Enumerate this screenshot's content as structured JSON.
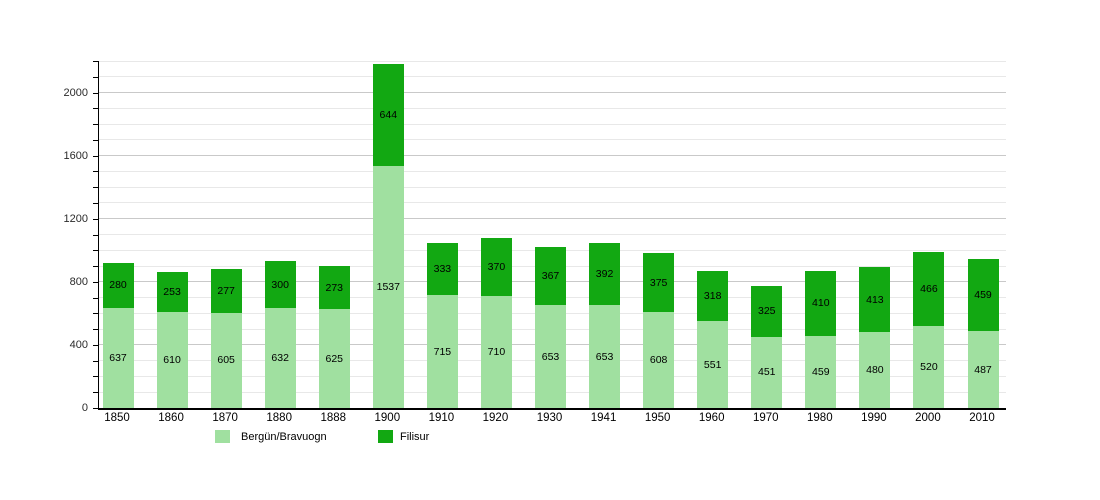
{
  "chart_data": {
    "type": "bar",
    "stacked": true,
    "title": "",
    "xlabel": "",
    "ylabel": "",
    "categories": [
      "1850",
      "1860",
      "1870",
      "1880",
      "1888",
      "1900",
      "1910",
      "1920",
      "1930",
      "1941",
      "1950",
      "1960",
      "1970",
      "1980",
      "1990",
      "2000",
      "2010"
    ],
    "series": [
      {
        "name": "Bergün/Bravuogn",
        "color": "#a0e0a0",
        "values": [
          637,
          610,
          605,
          632,
          625,
          1537,
          715,
          710,
          653,
          653,
          608,
          551,
          451,
          459,
          480,
          520,
          487
        ]
      },
      {
        "name": "Filisur",
        "color": "#12a812",
        "values": [
          280,
          253,
          277,
          300,
          273,
          644,
          333,
          370,
          367,
          392,
          375,
          318,
          325,
          410,
          413,
          466,
          459
        ]
      }
    ],
    "ylim": [
      0,
      2200
    ],
    "ytick_values": [
      0,
      400,
      800,
      1200,
      1600,
      2000
    ],
    "ytick_labels": [
      "0",
      "400",
      "800",
      "1200",
      "1600",
      "2000"
    ],
    "minor_grid_step": 100,
    "grid": true,
    "legend_position": "bottom",
    "value_labels": "inside-segments"
  }
}
